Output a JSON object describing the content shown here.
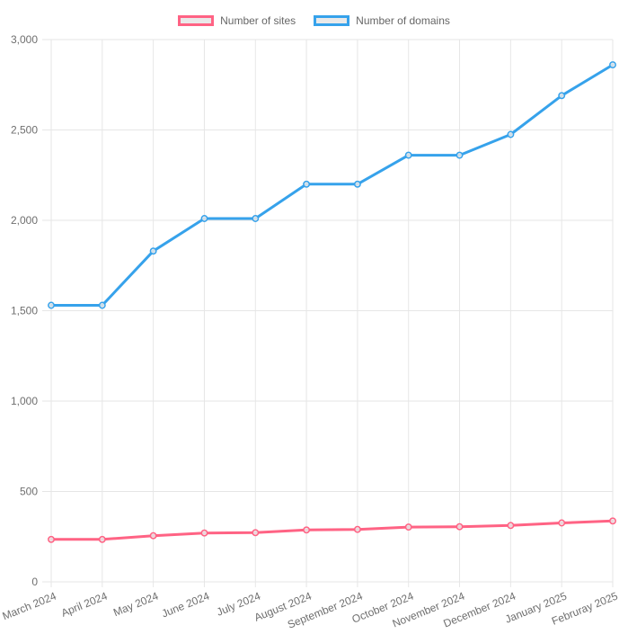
{
  "chart_data": {
    "type": "line",
    "x": [
      "March 2024",
      "April 2024",
      "May 2024",
      "June 2024",
      "July 2024",
      "August 2024",
      "September 2024",
      "October 2024",
      "November 2024",
      "December 2024",
      "January 2025",
      "Februray 2025"
    ],
    "series": [
      {
        "name": "Number of sites",
        "color": "#FF6384",
        "values": [
          235,
          235,
          255,
          270,
          272,
          287,
          290,
          303,
          305,
          312,
          326,
          337
        ]
      },
      {
        "name": "Number of domains",
        "color": "#36A2EB",
        "values": [
          1530,
          1530,
          1830,
          2010,
          2010,
          2200,
          2200,
          2360,
          2360,
          2475,
          2690,
          2860
        ]
      }
    ],
    "title": "",
    "xlabel": "",
    "ylabel": "",
    "ylim": [
      0,
      3000
    ],
    "y_ticks": [
      0,
      500,
      1000,
      1500,
      2000,
      2500,
      3000
    ],
    "grid": true,
    "legend_position": "top",
    "grid_color": "#e6e6e6",
    "tick_label_color": "#6f6f6f",
    "point_fill": "#e9e9e9",
    "x_label_rotation_deg": -22
  }
}
